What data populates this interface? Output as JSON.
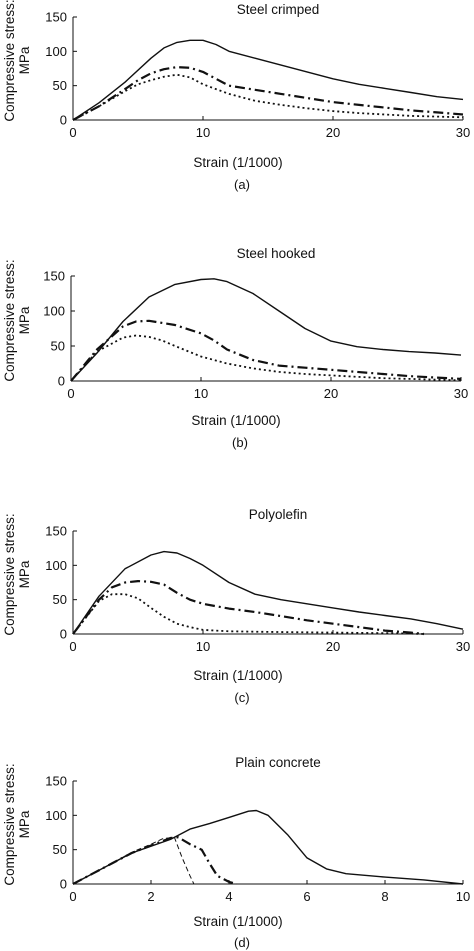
{
  "chart_data": [
    {
      "panel": "(a)",
      "type": "line",
      "title": "Steel crimped",
      "xlabel": "Strain (1/1000)",
      "ylabel": [
        "Compressive stress:",
        "MPa"
      ],
      "xlim": [
        0,
        30
      ],
      "ylim": [
        0,
        150
      ],
      "xticks": [
        0,
        10,
        20,
        30
      ],
      "yticks": [
        0,
        50,
        100,
        150
      ],
      "series": [
        {
          "style": "solid",
          "x": [
            0,
            2,
            4,
            6,
            7,
            8,
            9,
            10,
            11,
            12,
            14,
            16,
            18,
            20,
            22,
            24,
            26,
            28,
            30
          ],
          "y": [
            0,
            25,
            55,
            90,
            105,
            113,
            116,
            116,
            110,
            100,
            90,
            80,
            70,
            60,
            52,
            46,
            40,
            34,
            30
          ]
        },
        {
          "style": "dashdot",
          "x": [
            0,
            2,
            4,
            5,
            6,
            7,
            8,
            9,
            10,
            11,
            12,
            14,
            16,
            18,
            20,
            22,
            24,
            26,
            28,
            30
          ],
          "y": [
            0,
            20,
            45,
            58,
            68,
            74,
            77,
            76,
            70,
            60,
            50,
            44,
            38,
            32,
            26,
            22,
            18,
            14,
            11,
            8
          ]
        },
        {
          "style": "dotted",
          "x": [
            0,
            2,
            4,
            5,
            6,
            7,
            8,
            9,
            10,
            12,
            14,
            16,
            18,
            20,
            22,
            24,
            26,
            28,
            30
          ],
          "y": [
            0,
            20,
            42,
            52,
            58,
            63,
            66,
            62,
            52,
            38,
            28,
            22,
            17,
            13,
            10,
            8,
            6,
            5,
            4
          ]
        }
      ]
    },
    {
      "panel": "(b)",
      "type": "line",
      "title": "Steel hooked",
      "xlabel": "Strain (1/1000)",
      "ylabel": [
        "Compressive stress:",
        "MPa"
      ],
      "xlim": [
        0,
        30
      ],
      "ylim": [
        0,
        150
      ],
      "xticks": [
        0,
        10,
        20,
        30
      ],
      "yticks": [
        0,
        50,
        100,
        150
      ],
      "series": [
        {
          "style": "solid",
          "x": [
            0,
            2,
            4,
            6,
            8,
            10,
            11,
            12,
            14,
            16,
            18,
            20,
            22,
            24,
            26,
            28,
            30
          ],
          "y": [
            0,
            40,
            85,
            120,
            138,
            145,
            146,
            142,
            125,
            100,
            75,
            57,
            49,
            45,
            42,
            40,
            37
          ]
        },
        {
          "style": "dashdot",
          "x": [
            0,
            2,
            4,
            5,
            6,
            8,
            10,
            11,
            12,
            14,
            16,
            18,
            20,
            22,
            24,
            26,
            28,
            30
          ],
          "y": [
            0,
            45,
            78,
            85,
            86,
            80,
            68,
            58,
            45,
            30,
            22,
            19,
            16,
            13,
            10,
            7,
            5,
            3
          ]
        },
        {
          "style": "dotted",
          "x": [
            0,
            2,
            4,
            5,
            6,
            7,
            8,
            10,
            12,
            14,
            16,
            18,
            20,
            22,
            24,
            26,
            28,
            30
          ],
          "y": [
            0,
            42,
            62,
            65,
            63,
            58,
            50,
            35,
            25,
            18,
            13,
            10,
            8,
            6,
            4,
            3,
            2,
            1
          ]
        }
      ]
    },
    {
      "panel": "(c)",
      "type": "line",
      "title": "Polyolefin",
      "xlabel": "Strain (1/1000)",
      "ylabel": [
        "Compressive stress:",
        "MPa"
      ],
      "xlim": [
        0,
        30
      ],
      "ylim": [
        0,
        150
      ],
      "xticks": [
        0,
        10,
        20,
        30
      ],
      "yticks": [
        0,
        50,
        100,
        150
      ],
      "series": [
        {
          "style": "solid",
          "x": [
            0,
            2,
            4,
            6,
            7,
            8,
            9,
            10,
            12,
            14,
            16,
            18,
            20,
            22,
            24,
            26,
            28,
            30
          ],
          "y": [
            0,
            55,
            95,
            115,
            120,
            118,
            110,
            100,
            75,
            58,
            50,
            44,
            38,
            32,
            27,
            22,
            15,
            7
          ]
        },
        {
          "style": "dashdot",
          "x": [
            0,
            2,
            3,
            4,
            5,
            6,
            7,
            8,
            9,
            10,
            12,
            14,
            16,
            18,
            20,
            22,
            24,
            26,
            27
          ],
          "y": [
            0,
            50,
            68,
            75,
            77,
            76,
            72,
            60,
            50,
            44,
            37,
            32,
            26,
            20,
            15,
            10,
            5,
            2,
            0
          ]
        },
        {
          "style": "dotted",
          "x": [
            0,
            2,
            3,
            4,
            5,
            6,
            7,
            8,
            9,
            10,
            12,
            15,
            20,
            25,
            27
          ],
          "y": [
            0,
            48,
            58,
            58,
            52,
            38,
            25,
            15,
            10,
            6,
            4,
            3,
            2,
            1,
            0
          ]
        }
      ]
    },
    {
      "panel": "(d)",
      "type": "line",
      "title": "Plain concrete",
      "xlabel": "Strain (1/1000)",
      "ylabel": [
        "Compressive stress:",
        "MPa"
      ],
      "xlim": [
        0,
        10
      ],
      "ylim": [
        0,
        150
      ],
      "xticks": [
        0,
        2,
        4,
        6,
        8,
        10
      ],
      "yticks": [
        0,
        50,
        100,
        150
      ],
      "series": [
        {
          "style": "solid",
          "x": [
            0,
            0.5,
            1,
            1.5,
            2,
            2.5,
            3,
            3.5,
            4,
            4.5,
            4.7,
            5,
            5.5,
            6,
            6.5,
            7,
            8,
            9,
            10
          ],
          "y": [
            0,
            15,
            30,
            45,
            55,
            65,
            80,
            88,
            97,
            106,
            107,
            100,
            72,
            38,
            22,
            15,
            10,
            6,
            0
          ]
        },
        {
          "style": "dashdot",
          "x": [
            0,
            0.5,
            1,
            1.5,
            2,
            2.5,
            2.7,
            3,
            3.3,
            3.5,
            3.7,
            4,
            4.2
          ],
          "y": [
            0,
            15,
            30,
            45,
            56,
            67,
            68,
            58,
            50,
            30,
            12,
            3,
            0
          ]
        },
        {
          "style": "dashed",
          "x": [
            0,
            0.5,
            1,
            1.5,
            2,
            2.3,
            2.6,
            2.8,
            3,
            3.1
          ],
          "y": [
            0,
            15,
            30,
            46,
            58,
            66,
            68,
            38,
            12,
            0
          ]
        }
      ]
    }
  ]
}
